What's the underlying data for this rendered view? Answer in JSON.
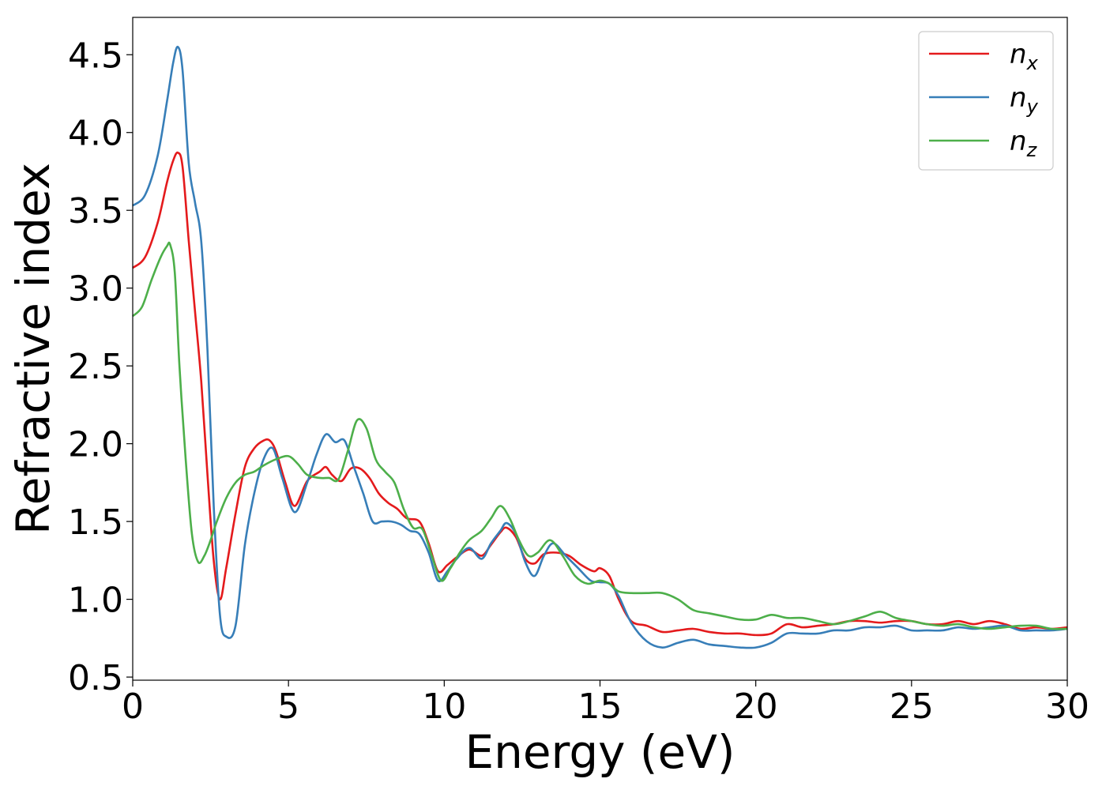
{
  "chart_data": {
    "type": "line",
    "title": "",
    "xlabel": "Energy (eV)",
    "ylabel": "Refractive index",
    "xlim": [
      0,
      30
    ],
    "ylim": [
      0.48,
      4.74
    ],
    "xticks": [
      0,
      5,
      10,
      15,
      20,
      25,
      30
    ],
    "yticks": [
      0.5,
      1.0,
      1.5,
      2.0,
      2.5,
      3.0,
      3.5,
      4.0,
      4.5
    ],
    "grid": false,
    "legend_position": "top-right",
    "series": [
      {
        "name": "n_x",
        "label_base": "n",
        "label_sub": "x",
        "color": "#e41a1c",
        "x": [
          0,
          0.4,
          0.8,
          1.1,
          1.3,
          1.45,
          1.6,
          1.8,
          2.0,
          2.2,
          2.4,
          2.6,
          2.8,
          3.0,
          3.3,
          3.6,
          3.9,
          4.2,
          4.4,
          4.6,
          4.9,
          5.2,
          5.6,
          6.0,
          6.2,
          6.4,
          6.7,
          7.0,
          7.3,
          7.6,
          7.9,
          8.2,
          8.5,
          8.8,
          9.2,
          9.5,
          9.8,
          10.1,
          10.4,
          10.8,
          11.2,
          11.5,
          11.8,
          12.0,
          12.3,
          12.6,
          12.9,
          13.2,
          13.6,
          14.0,
          14.4,
          14.8,
          15.0,
          15.3,
          15.6,
          16.0,
          16.5,
          17.0,
          17.5,
          18.0,
          18.5,
          19.0,
          19.5,
          20.0,
          20.5,
          21.0,
          21.5,
          22.0,
          22.5,
          23.0,
          23.5,
          24.0,
          24.5,
          25.0,
          25.5,
          26.0,
          26.5,
          27.0,
          27.5,
          28.0,
          28.5,
          29.0,
          29.5,
          30.0
        ],
        "y": [
          3.13,
          3.2,
          3.42,
          3.68,
          3.82,
          3.87,
          3.78,
          3.3,
          2.85,
          2.4,
          1.8,
          1.25,
          1.0,
          1.2,
          1.55,
          1.85,
          1.97,
          2.02,
          2.02,
          1.95,
          1.75,
          1.6,
          1.76,
          1.82,
          1.85,
          1.8,
          1.76,
          1.84,
          1.84,
          1.78,
          1.68,
          1.62,
          1.58,
          1.52,
          1.5,
          1.36,
          1.18,
          1.22,
          1.27,
          1.32,
          1.28,
          1.35,
          1.43,
          1.46,
          1.4,
          1.26,
          1.23,
          1.29,
          1.3,
          1.28,
          1.22,
          1.18,
          1.2,
          1.15,
          1.0,
          0.86,
          0.83,
          0.79,
          0.8,
          0.81,
          0.79,
          0.78,
          0.78,
          0.77,
          0.78,
          0.84,
          0.82,
          0.83,
          0.84,
          0.86,
          0.86,
          0.85,
          0.86,
          0.86,
          0.84,
          0.84,
          0.86,
          0.84,
          0.86,
          0.84,
          0.81,
          0.82,
          0.81,
          0.82
        ]
      },
      {
        "name": "n_y",
        "label_base": "n",
        "label_sub": "y",
        "color": "#377eb8",
        "x": [
          0,
          0.4,
          0.8,
          1.1,
          1.3,
          1.45,
          1.6,
          1.8,
          2.0,
          2.2,
          2.4,
          2.6,
          2.8,
          3.0,
          3.3,
          3.6,
          3.9,
          4.2,
          4.5,
          4.8,
          5.2,
          5.6,
          5.9,
          6.2,
          6.5,
          6.8,
          7.1,
          7.4,
          7.7,
          8.0,
          8.3,
          8.6,
          8.9,
          9.2,
          9.5,
          9.8,
          10.1,
          10.4,
          10.8,
          11.2,
          11.5,
          11.8,
          12.0,
          12.3,
          12.6,
          12.9,
          13.2,
          13.5,
          13.9,
          14.3,
          14.7,
          15.0,
          15.3,
          15.6,
          16.0,
          16.5,
          17.0,
          17.5,
          18.0,
          18.5,
          19.0,
          19.5,
          20.0,
          20.5,
          21.0,
          21.5,
          22.0,
          22.5,
          23.0,
          23.5,
          24.0,
          24.5,
          25.0,
          25.5,
          26.0,
          26.5,
          27.0,
          27.5,
          28.0,
          28.5,
          29.0,
          29.5,
          30.0
        ],
        "y": [
          3.53,
          3.6,
          3.85,
          4.2,
          4.45,
          4.55,
          4.4,
          3.8,
          3.55,
          3.3,
          2.6,
          1.6,
          0.9,
          0.76,
          0.83,
          1.35,
          1.68,
          1.9,
          1.97,
          1.78,
          1.56,
          1.75,
          1.93,
          2.06,
          2.01,
          2.02,
          1.85,
          1.68,
          1.5,
          1.5,
          1.5,
          1.48,
          1.44,
          1.42,
          1.3,
          1.12,
          1.18,
          1.26,
          1.33,
          1.26,
          1.36,
          1.44,
          1.49,
          1.42,
          1.24,
          1.15,
          1.28,
          1.36,
          1.28,
          1.2,
          1.12,
          1.11,
          1.1,
          1.02,
          0.85,
          0.73,
          0.69,
          0.72,
          0.74,
          0.71,
          0.7,
          0.69,
          0.69,
          0.72,
          0.78,
          0.78,
          0.78,
          0.8,
          0.8,
          0.82,
          0.82,
          0.83,
          0.8,
          0.8,
          0.8,
          0.82,
          0.81,
          0.82,
          0.83,
          0.8,
          0.8,
          0.8,
          0.81
        ]
      },
      {
        "name": "n_z",
        "label_base": "n",
        "label_sub": "z",
        "color": "#4daf4a",
        "x": [
          0,
          0.3,
          0.6,
          0.9,
          1.1,
          1.2,
          1.35,
          1.5,
          1.7,
          1.9,
          2.1,
          2.3,
          2.5,
          2.7,
          3.0,
          3.3,
          3.6,
          3.9,
          4.2,
          4.6,
          5.0,
          5.3,
          5.6,
          6.0,
          6.3,
          6.6,
          6.9,
          7.2,
          7.5,
          7.8,
          8.1,
          8.4,
          8.7,
          9.0,
          9.3,
          9.6,
          9.9,
          10.2,
          10.5,
          10.8,
          11.2,
          11.5,
          11.8,
          12.1,
          12.4,
          12.7,
          13.0,
          13.4,
          13.8,
          14.2,
          14.6,
          15.0,
          15.3,
          15.6,
          16.0,
          16.5,
          17.0,
          17.5,
          18.0,
          18.5,
          19.0,
          19.5,
          20.0,
          20.5,
          21.0,
          21.5,
          22.0,
          22.5,
          23.0,
          23.5,
          24.0,
          24.5,
          25.0,
          25.5,
          26.0,
          26.5,
          27.0,
          27.5,
          28.0,
          28.5,
          29.0,
          29.5,
          30.0
        ],
        "y": [
          2.82,
          2.88,
          3.05,
          3.2,
          3.27,
          3.28,
          3.1,
          2.5,
          1.9,
          1.42,
          1.24,
          1.28,
          1.38,
          1.5,
          1.65,
          1.75,
          1.8,
          1.82,
          1.86,
          1.9,
          1.92,
          1.87,
          1.8,
          1.78,
          1.78,
          1.77,
          1.95,
          2.15,
          2.1,
          1.9,
          1.82,
          1.75,
          1.58,
          1.46,
          1.45,
          1.28,
          1.12,
          1.2,
          1.3,
          1.38,
          1.44,
          1.52,
          1.6,
          1.52,
          1.38,
          1.28,
          1.3,
          1.38,
          1.28,
          1.15,
          1.1,
          1.12,
          1.1,
          1.05,
          1.04,
          1.04,
          1.04,
          1.0,
          0.93,
          0.91,
          0.89,
          0.87,
          0.87,
          0.9,
          0.88,
          0.88,
          0.86,
          0.84,
          0.86,
          0.89,
          0.92,
          0.88,
          0.86,
          0.84,
          0.83,
          0.84,
          0.82,
          0.81,
          0.82,
          0.83,
          0.83,
          0.81,
          0.81
        ]
      }
    ]
  }
}
